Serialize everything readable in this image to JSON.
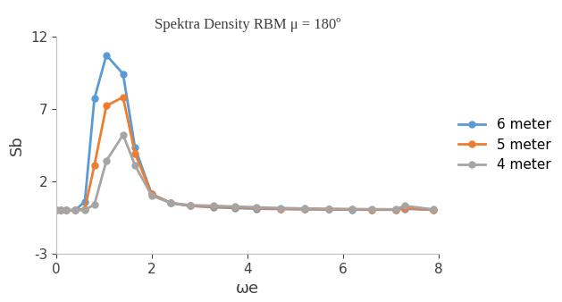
{
  "chart_data": {
    "type": "line",
    "title": "Spektra Density RBM μ = 180º",
    "x_label": "ωe",
    "y_label": "Sb",
    "x": [
      0,
      0.1,
      0.2,
      0.4,
      0.6,
      0.8,
      1.05,
      1.4,
      1.65,
      2.0,
      2.4,
      2.8,
      3.3,
      3.75,
      4.2,
      4.7,
      5.2,
      5.7,
      6.2,
      6.6,
      7.1,
      7.3,
      7.9
    ],
    "series": [
      {
        "name": "6 meter",
        "color": "#5B9BD5",
        "marker": "circle",
        "values": [
          0,
          0,
          0,
          0,
          0.6,
          7.7,
          10.7,
          9.4,
          4.3,
          1.1,
          0.5,
          0.3,
          0.2,
          0.15,
          0.1,
          0.08,
          0.06,
          0.05,
          0.04,
          0.03,
          0.03,
          0.1,
          0.02
        ]
      },
      {
        "name": "5 meter",
        "color": "#ED7D31",
        "marker": "circle",
        "values": [
          0,
          0,
          0,
          0,
          0.1,
          3.1,
          7.2,
          7.8,
          3.9,
          1.1,
          0.5,
          0.3,
          0.25,
          0.2,
          0.15,
          0.1,
          0.08,
          0.06,
          0.05,
          0.04,
          0.04,
          0.15,
          0.03
        ]
      },
      {
        "name": "4 meter",
        "color": "#A5A5A5",
        "marker": "circle",
        "values": [
          0,
          0,
          0,
          0,
          0,
          0.4,
          3.4,
          5.2,
          3.1,
          1.0,
          0.5,
          0.35,
          0.3,
          0.25,
          0.2,
          0.15,
          0.12,
          0.1,
          0.08,
          0.07,
          0.06,
          0.3,
          0.05
        ]
      }
    ],
    "xlim": [
      0,
      8
    ],
    "xticks": [
      0,
      2,
      4,
      6,
      8
    ],
    "ylim": [
      -3,
      12
    ],
    "yticks": [
      -3,
      2,
      7,
      12
    ],
    "grid": false,
    "legend": "right"
  }
}
